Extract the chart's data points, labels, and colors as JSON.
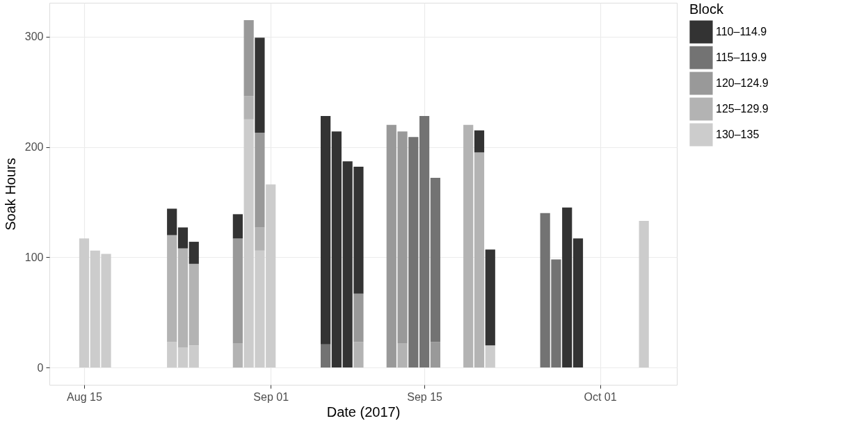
{
  "chart_data": {
    "type": "bar",
    "stacked": true,
    "xlabel": "Date (2017)",
    "ylabel": "Soak Hours",
    "legend_title": "Block",
    "legend": "right",
    "grid": true,
    "x": [
      "2017-08-15",
      "2017-08-16",
      "2017-08-17",
      "2017-08-23",
      "2017-08-24",
      "2017-08-25",
      "2017-08-29",
      "2017-08-30",
      "2017-08-31",
      "2017-09-01",
      "2017-09-06",
      "2017-09-07",
      "2017-09-08",
      "2017-09-09",
      "2017-09-12",
      "2017-09-13",
      "2017-09-14",
      "2017-09-15",
      "2017-09-16",
      "2017-09-19",
      "2017-09-20",
      "2017-09-21",
      "2017-09-26",
      "2017-09-27",
      "2017-09-28",
      "2017-09-29",
      "2017-10-05"
    ],
    "series": [
      {
        "name": "130–135",
        "color": "#cccccc",
        "values": [
          117,
          106,
          103,
          23,
          18,
          20,
          null,
          225,
          106,
          166,
          null,
          null,
          null,
          null,
          null,
          null,
          null,
          null,
          null,
          null,
          null,
          20,
          null,
          null,
          null,
          null,
          133
        ]
      },
      {
        "name": "125–129.9",
        "color": "#b3b3b3",
        "values": [
          null,
          null,
          null,
          97,
          90,
          74,
          22,
          21,
          21,
          null,
          null,
          null,
          null,
          23,
          null,
          22,
          null,
          null,
          null,
          220,
          195,
          null,
          null,
          null,
          null,
          null,
          null
        ]
      },
      {
        "name": "120–124.9",
        "color": "#999999",
        "values": [
          null,
          null,
          null,
          null,
          null,
          null,
          95,
          69,
          86,
          null,
          null,
          null,
          null,
          44,
          220,
          192,
          null,
          null,
          23,
          null,
          null,
          null,
          null,
          null,
          null,
          null,
          null
        ]
      },
      {
        "name": "115–119.9",
        "color": "#737373",
        "values": [
          null,
          null,
          null,
          null,
          null,
          null,
          null,
          null,
          null,
          null,
          21,
          null,
          null,
          null,
          null,
          null,
          209,
          228,
          149,
          null,
          null,
          null,
          140,
          98,
          null,
          null,
          null
        ]
      },
      {
        "name": "110–114.9",
        "color": "#333333",
        "values": [
          null,
          null,
          null,
          24,
          19,
          20,
          22,
          null,
          86,
          null,
          207,
          214,
          187,
          115,
          null,
          null,
          null,
          null,
          null,
          null,
          20,
          87,
          null,
          null,
          145,
          117,
          null
        ]
      }
    ],
    "xlim": [
      "2017-08-11T20:00",
      "2017-10-08"
    ],
    "xticks": [
      {
        "value": "2017-08-15",
        "label": "Aug 15"
      },
      {
        "value": "2017-09-01",
        "label": "Sep 01"
      },
      {
        "value": "2017-09-15",
        "label": "Sep 15"
      },
      {
        "value": "2017-10-01",
        "label": "Oct 01"
      }
    ],
    "ylim": [
      -15.7,
      330.7
    ],
    "yticks": [
      0,
      100,
      200,
      300
    ]
  }
}
